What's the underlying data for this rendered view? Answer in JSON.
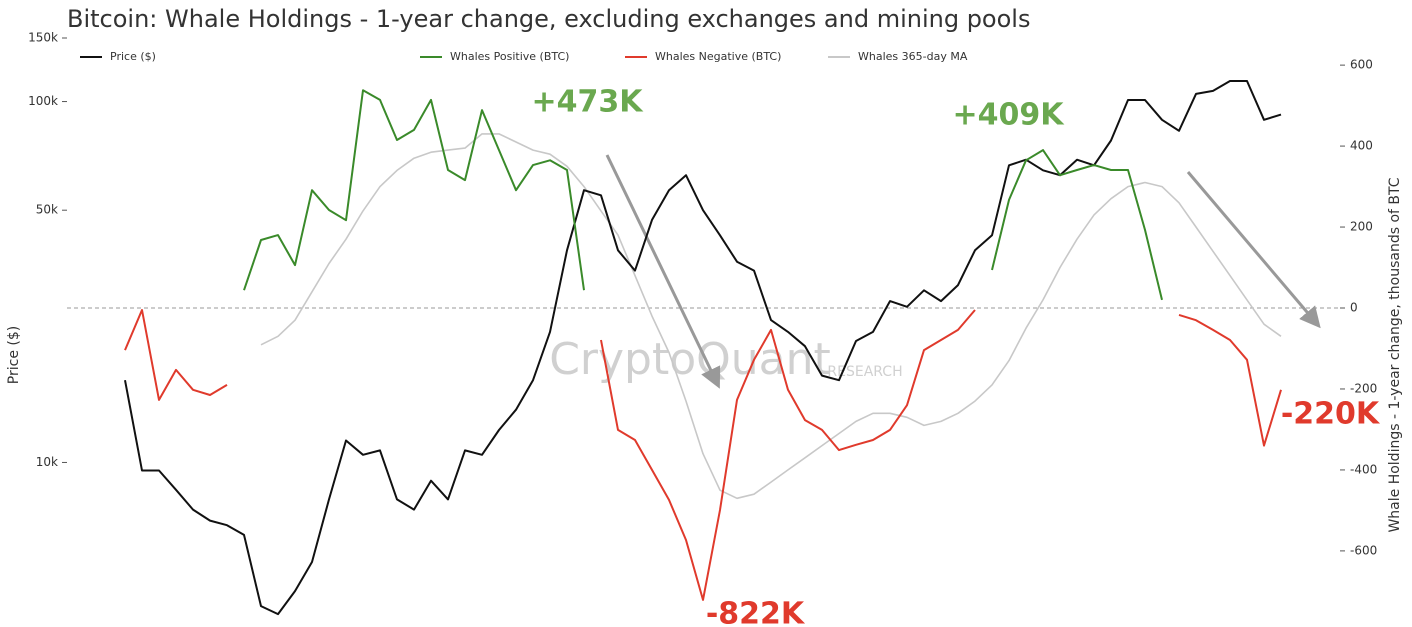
{
  "chart_data": {
    "type": "line",
    "title": "Bitcoin: Whale Holdings - 1-year change, excluding exchanges and mining pools",
    "ylabel": "Price ($)",
    "y2label": "Whale Holdings - 1-year change, thousands of BTC",
    "watermark": [
      "CryptoQuant",
      "RESEARCH"
    ],
    "ylog": true,
    "ylim": [
      3500,
      150000
    ],
    "yticks": [
      {
        "value": 10000,
        "label": "10k"
      },
      {
        "value": 50000,
        "label": "50k"
      },
      {
        "value": 100000,
        "label": "100k"
      },
      {
        "value": 150000,
        "label": "150k"
      }
    ],
    "y2lim": [
      -788,
      667
    ],
    "y2ticks": [
      -600,
      -400,
      -200,
      0,
      200,
      400,
      600
    ],
    "zero_line": true,
    "categories": [
      null,
      null,
      null,
      null,
      null,
      null,
      null,
      null,
      null,
      null,
      null,
      null,
      null,
      null,
      null,
      null,
      null,
      null,
      null,
      null,
      null,
      null,
      null,
      null,
      null,
      null,
      null,
      null,
      null,
      null,
      null,
      null,
      null,
      null,
      null,
      null,
      null,
      null,
      null,
      null,
      null,
      null,
      null,
      null,
      null,
      null,
      null,
      null,
      null,
      null,
      null,
      null,
      null,
      null,
      null,
      null,
      null,
      null,
      null,
      null,
      null,
      null,
      null,
      null,
      null,
      null,
      null,
      null,
      null
    ],
    "series": [
      {
        "name": "Price ($)",
        "color": "#111111",
        "values": [
          16900,
          9500,
          9500,
          8400,
          7400,
          6900,
          6700,
          6300,
          4000,
          3800,
          4400,
          5300,
          7900,
          11500,
          10500,
          10800,
          7900,
          7400,
          8900,
          7900,
          10800,
          10500,
          12300,
          14000,
          16900,
          23000,
          38700,
          56800,
          55000,
          38700,
          34000,
          47000,
          56800,
          62500,
          50000,
          42600,
          36000,
          34000,
          24800,
          23000,
          21000,
          17400,
          16900,
          21700,
          23000,
          28000,
          27000,
          30000,
          28000,
          31000,
          38700,
          42600,
          66600,
          69000,
          64500,
          62500,
          69000,
          66600,
          78000,
          101000,
          101000,
          89000,
          83000,
          105000,
          107000,
          114000,
          114000,
          89000,
          92000
        ]
      },
      {
        "name": "Whales Positive (BTC)",
        "color": "#3a8a2a",
        "axis": "y2",
        "values": [
          null,
          null,
          null,
          null,
          null,
          null,
          null,
          44,
          168,
          180,
          106,
          291,
          242,
          217,
          538,
          514,
          415,
          440,
          514,
          341,
          316,
          489,
          390,
          291,
          353,
          365,
          341,
          44,
          null,
          null,
          null,
          null,
          null,
          null,
          null,
          null,
          null,
          null,
          null,
          null,
          null,
          null,
          null,
          null,
          null,
          null,
          null,
          null,
          null,
          null,
          null,
          94,
          267,
          365,
          390,
          328,
          341,
          353,
          341,
          341,
          193,
          20,
          null,
          null,
          null,
          null,
          null,
          null,
          null
        ]
      },
      {
        "name": "Whales Negative (BTC)",
        "color": "#e03a2c",
        "axis": "y2",
        "values": [
          -104,
          -5,
          -227,
          -153,
          -202,
          -215,
          -190,
          null,
          null,
          null,
          null,
          null,
          null,
          null,
          null,
          null,
          null,
          null,
          null,
          null,
          null,
          null,
          null,
          null,
          null,
          null,
          null,
          null,
          -79,
          -301,
          -326,
          -400,
          -474,
          -573,
          -721,
          -499,
          -227,
          -128,
          -54,
          -202,
          -277,
          -301,
          -351,
          -338,
          -326,
          -301,
          -240,
          -104,
          -79,
          -54,
          -5,
          null,
          null,
          null,
          null,
          null,
          null,
          null,
          null,
          null,
          null,
          null,
          -17,
          -30,
          -54,
          -79,
          -128,
          -340,
          -202
        ]
      },
      {
        "name": "Whales 365-day MA",
        "color": "#c8c8c8",
        "axis": "y2",
        "values": [
          null,
          null,
          null,
          null,
          null,
          null,
          null,
          null,
          -91,
          -70,
          -30,
          40,
          110,
          170,
          240,
          300,
          340,
          370,
          385,
          390,
          395,
          430,
          430,
          410,
          390,
          380,
          350,
          300,
          240,
          180,
          80,
          -20,
          -110,
          -230,
          -360,
          -450,
          -470,
          -460,
          -430,
          -400,
          -370,
          -340,
          -310,
          -280,
          -260,
          -260,
          -270,
          -290,
          -280,
          -260,
          -230,
          -190,
          -130,
          -50,
          20,
          100,
          170,
          230,
          270,
          300,
          310,
          300,
          260,
          200,
          140,
          80,
          20,
          -40,
          -70
        ]
      }
    ],
    "annotations": [
      {
        "text": "+473K",
        "color": "#6aa84f"
      },
      {
        "text": "+409K",
        "color": "#6aa84f"
      },
      {
        "text": "-822K",
        "color": "#e03a2c"
      },
      {
        "text": "-220K",
        "color": "#e03a2c"
      }
    ]
  }
}
